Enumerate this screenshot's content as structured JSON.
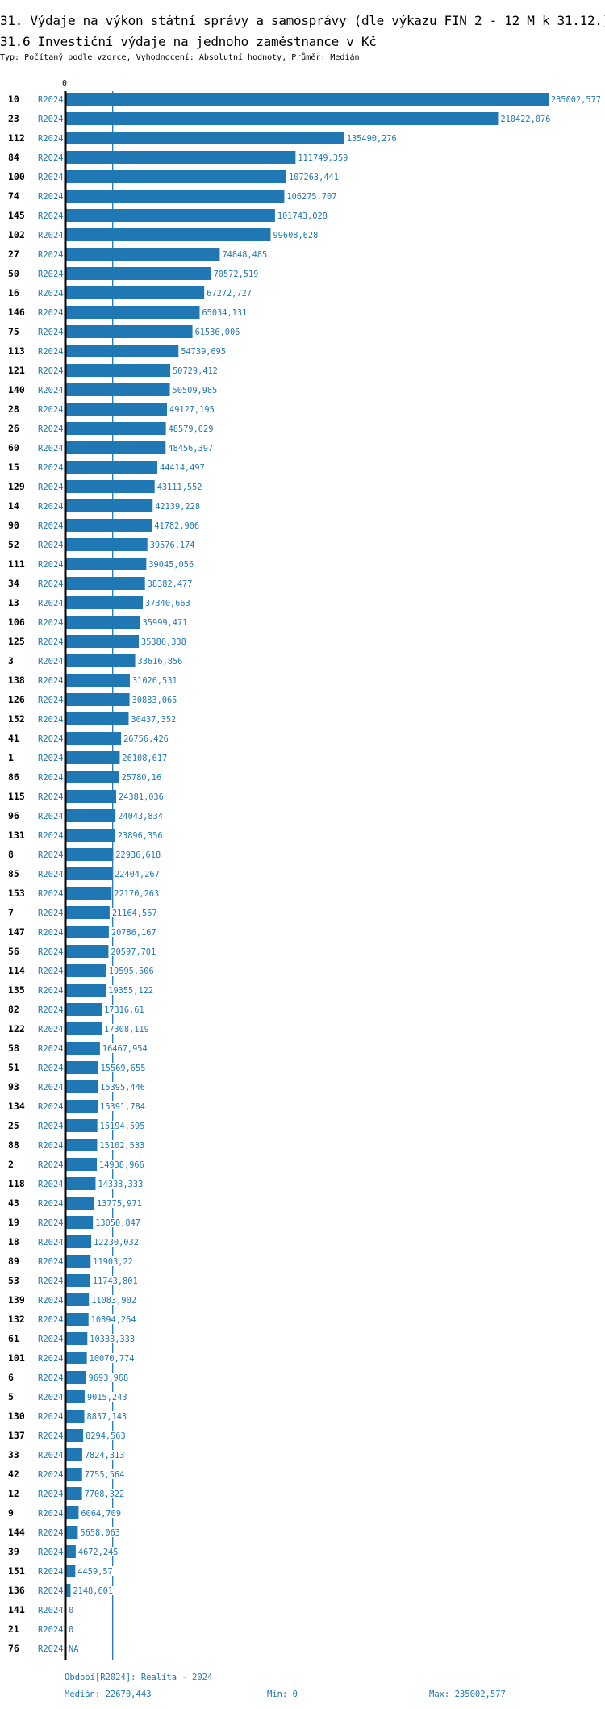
{
  "header": {
    "title": "31. Výdaje na výkon státní správy a samosprávy (dle výkazu FIN 2 - 12 M k 31.12.)",
    "subtitle": "31.6 Investiční výdaje na jednoho zaměstnance v Kč",
    "meta": "Typ: Počítaný podle vzorce, Vyhodnocení: Absolutní hodnoty, Průměr: Medián"
  },
  "footer": {
    "period": "Období[R2024]: Realita - 2024",
    "median": "Medián: 22670,443",
    "min": "Min: 0",
    "max": "Max: 235002,577"
  },
  "colors": {
    "bar": "#1f77b4",
    "axis": "#000000",
    "median_line": "#1f77b4"
  },
  "chart_data": {
    "type": "bar",
    "orientation": "horizontal",
    "axis_zero_label": "0",
    "series_label": "R2024",
    "median": 22670.443,
    "xlim": [
      0,
      235002.577
    ],
    "categories": [
      "10",
      "23",
      "112",
      "84",
      "100",
      "74",
      "145",
      "102",
      "27",
      "50",
      "16",
      "146",
      "75",
      "113",
      "121",
      "140",
      "28",
      "26",
      "60",
      "15",
      "129",
      "14",
      "90",
      "52",
      "111",
      "34",
      "13",
      "106",
      "125",
      "3",
      "138",
      "126",
      "152",
      "41",
      "1",
      "86",
      "115",
      "96",
      "131",
      "8",
      "85",
      "153",
      "7",
      "147",
      "56",
      "114",
      "135",
      "82",
      "122",
      "58",
      "51",
      "93",
      "134",
      "25",
      "88",
      "2",
      "118",
      "43",
      "19",
      "18",
      "89",
      "53",
      "139",
      "132",
      "61",
      "101",
      "6",
      "5",
      "130",
      "137",
      "33",
      "42",
      "12",
      "9",
      "144",
      "39",
      "151",
      "136",
      "141",
      "21",
      "76"
    ],
    "values": [
      235002.577,
      210422.076,
      135490.276,
      111749.359,
      107263.441,
      106275.707,
      101743.028,
      99608.628,
      74848.485,
      70572.519,
      67272.727,
      65034.131,
      61536.006,
      54739.695,
      50729.412,
      50509.985,
      49127.195,
      48579.629,
      48456.397,
      44414.497,
      43111.552,
      42139.228,
      41782.906,
      39576.174,
      39045.056,
      38382.477,
      37340.663,
      35999.471,
      35386.338,
      33616.856,
      31026.531,
      30883.065,
      30437.352,
      26756.426,
      26108.617,
      25780.16,
      24381.036,
      24043.834,
      23896.356,
      22936.618,
      22404.267,
      22170.263,
      21164.567,
      20786.167,
      20597.701,
      19595.506,
      19355.122,
      17316.61,
      17308.119,
      16467.954,
      15569.655,
      15395.446,
      15391.784,
      15194.595,
      15102.533,
      14938.966,
      14333.333,
      13775.971,
      13050.847,
      12230.032,
      11903.22,
      11743.801,
      11083.902,
      10894.264,
      10333.333,
      10070.774,
      9693.968,
      9015.243,
      8857.143,
      8294.563,
      7824.313,
      7755.564,
      7708.322,
      6064.709,
      5658.063,
      4672.245,
      4459.57,
      2148.601,
      0,
      0,
      null
    ],
    "value_labels": [
      "235002,577",
      "210422,076",
      "135490,276",
      "111749,359",
      "107263,441",
      "106275,707",
      "101743,028",
      "99608,628",
      "74848,485",
      "70572,519",
      "67272,727",
      "65034,131",
      "61536,006",
      "54739,695",
      "50729,412",
      "50509,985",
      "49127,195",
      "48579,629",
      "48456,397",
      "44414,497",
      "43111,552",
      "42139,228",
      "41782,906",
      "39576,174",
      "39045,056",
      "38382,477",
      "37340,663",
      "35999,471",
      "35386,338",
      "33616,856",
      "31026,531",
      "30883,065",
      "30437,352",
      "26756,426",
      "26108,617",
      "25780,16",
      "24381,036",
      "24043,834",
      "23896,356",
      "22936,618",
      "22404,267",
      "22170,263",
      "21164,567",
      "20786,167",
      "20597,701",
      "19595,506",
      "19355,122",
      "17316,61",
      "17308,119",
      "16467,954",
      "15569,655",
      "15395,446",
      "15391,784",
      "15194,595",
      "15102,533",
      "14938,966",
      "14333,333",
      "13775,971",
      "13050,847",
      "12230,032",
      "11903,22",
      "11743,801",
      "11083,902",
      "10894,264",
      "10333,333",
      "10070,774",
      "9693,968",
      "9015,243",
      "8857,143",
      "8294,563",
      "7824,313",
      "7755,564",
      "7708,322",
      "6064,709",
      "5658,063",
      "4672,245",
      "4459,57",
      "2148,601",
      "0",
      "0",
      "NA"
    ]
  }
}
